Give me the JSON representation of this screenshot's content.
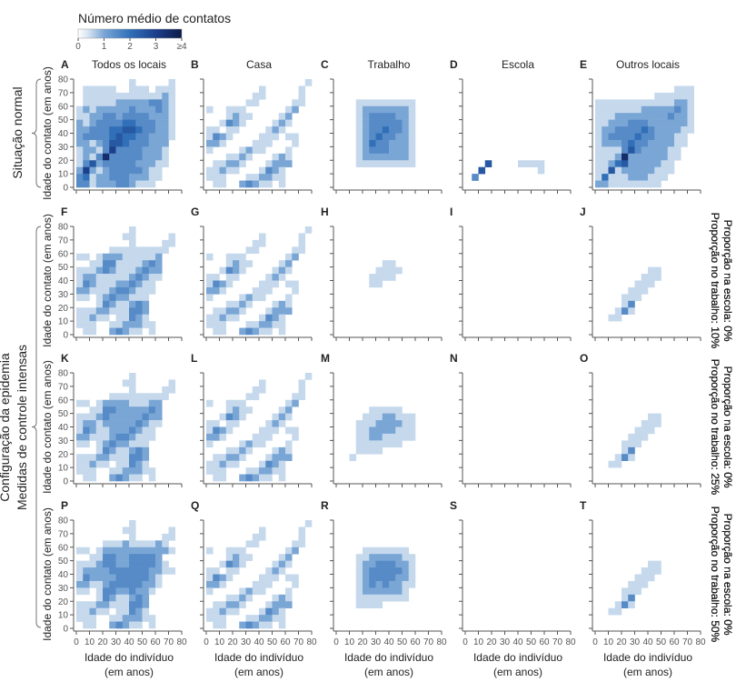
{
  "chart_data": {
    "type": "heatmap",
    "legend": {
      "title": "Número médio de contatos",
      "ticks": [
        "0",
        "1",
        "2",
        "3",
        "≥4"
      ],
      "range": [
        0,
        4
      ]
    },
    "colors": {
      "stops": [
        [
          0,
          "#ffffff"
        ],
        [
          0.4,
          "#d5e3f0"
        ],
        [
          1,
          "#7aa6d6"
        ],
        [
          2,
          "#3170b8"
        ],
        [
          3,
          "#1c3f8c"
        ],
        [
          4,
          "#0e1a47"
        ]
      ],
      "axis": "#555555"
    },
    "value_encoding": "each matrix row is a string of digits, top row = contact age 75-80, bottom row = 0-5; columns = individual age 0-5 ... 75-80; value = digit × 0.5 contacts",
    "axis_ticks": [
      "0",
      "10",
      "20",
      "30",
      "40",
      "50",
      "60",
      "70",
      "80"
    ],
    "xlabel": [
      "Idade do indivíduo",
      "(em anos)"
    ],
    "ylabel": "Idade do contato (em anos)",
    "column_titles": [
      "Todos os locais",
      "Casa",
      "Trabalho",
      "Escola",
      "Outros locais"
    ],
    "row_groups": [
      {
        "label": "Situação normal"
      },
      {
        "label": "Configuração da epidemia",
        "sublabel": "Medidas de controle intensas"
      }
    ],
    "row_annotations": [
      null,
      [
        "Proporção no trabalho: 10%",
        "Proporção na escola: 0%"
      ],
      [
        "Proporção no trabalho: 25%",
        "Proporção na escola: 0%"
      ],
      [
        "Proporção no trabalho: 50%",
        "Proporção na escola: 0%"
      ]
    ],
    "matrices": {
      "allNormal": [
        "0000000010000010",
        "0111110011101110",
        "0111111111111210",
        "0111112222233210",
        "1212222232223210",
        "1122332333322210",
        "2123333443332210",
        "2233344554332210",
        "2333345443322210",
        "2212355433322200",
        "1221363333222100",
        "1213733333222100",
        "1352333332221100",
        "2621233333211000",
        "3412233322211000",
        "3312223321110000"
      ],
      "home": [
        "0000000000000001",
        "0000000010000010",
        "0000000110000010",
        "0000001100000110",
        "1001110000001200",
        "0001211000012000",
        "0013210000121000",
        "1101100001210000",
        "1321000011101100",
        "2210000111000100",
        "1000012110001000",
        "0001121000121000",
        "0112210001222000",
        "1121100013210000",
        "1110001122110000",
        "0110023211010000"
      ],
      "workNormal": [
        "0000000000000000",
        "0000000000000000",
        "0000000000000000",
        "0001111111110000",
        "0001222222210000",
        "0001233332210000",
        "0001233333210000",
        "0001233433210000",
        "0001234332210000",
        "0001243322210000",
        "0001233322210000",
        "0001222222210000",
        "0001111111110000",
        "0000000000000000",
        "0000000000000000",
        "0000000000000000"
      ],
      "school": [
        "0000000000000000",
        "0000000000000000",
        "0000000000000000",
        "0000000000000000",
        "0000000000000000",
        "0000000000000000",
        "0000000000000000",
        "0000000000000000",
        "0000000000000000",
        "0000000000000000",
        "0000000000000000",
        "0000000000000000",
        "0005000011110000",
        "0050000000010000",
        "0300000000000000",
        "0000000000000000"
      ],
      "otherNormal": [
        "0000000000000000",
        "0000000000001110",
        "0000000001111110",
        "1111111111112210",
        "1111111222223210",
        "1112222222232210",
        "1122233322222210",
        "1223333432222110",
        "1233334332221100",
        "1222343322221100",
        "1111353222211000",
        "1112722222211000",
        "1124522222110000",
        "1151222221110000",
        "1411122211100000",
        "2211111111000000"
      ],
      "all10": [
        "0000000010000000",
        "0000000110000010",
        "0000000010000110",
        "0000011111111100",
        "1101222111112000",
        "0011331111232000",
        "1112321112322000",
        "1221111123211000",
        "1321112232110000",
        "2211123321110000",
        "1101232211100000",
        "0001321123200000",
        "1112211133200000",
        "1121101132100000",
        "1110011222110000",
        "0110023211010000"
      ],
      "all25": [
        "0000000010000000",
        "0000000110000010",
        "0000000010000110",
        "0000011111111100",
        "1101222211122000",
        "0011332222232000",
        "1112322222322000",
        "1221222223211000",
        "1321122232110000",
        "2211123321110000",
        "1101232211100000",
        "0001321123200000",
        "1112211133200000",
        "1121101132100000",
        "1110011222110000",
        "0110023211010000"
      ],
      "all50": [
        "0000000010000000",
        "0000000110000010",
        "0000000010000110",
        "0000111211112100",
        "1101222222222210",
        "0011332233332000",
        "1112332233332100",
        "1222233333322110",
        "1322223333321000",
        "2211233333221000",
        "1101332232210000",
        "0001321123200000",
        "1112211133200000",
        "1121101132100000",
        "1110011222110000",
        "0110023211010000"
      ],
      "work10": [
        "0000000000000000",
        "0000000000000000",
        "0000000000000000",
        "0000000000000000",
        "0000000000000000",
        "0000000110000000",
        "0000001111000000",
        "0000011110000000",
        "0000011000000000",
        "0000000000000000",
        "0000000000000000",
        "0000000000000000",
        "0000000000000000",
        "0000000000000000",
        "0000000000000000",
        "0000000000000000"
      ],
      "work25": [
        "0000000000000000",
        "0000000000000000",
        "0000000000000000",
        "0000000000000000",
        "0000000000000000",
        "0000011111000000",
        "0000111221110000",
        "0001112222110000",
        "0001122221110000",
        "0001122111110000",
        "0001111111000000",
        "0001111000000000",
        "0010000000000000",
        "0000000000000000",
        "0000000000000000",
        "0000000000000000"
      ],
      "work50": [
        "0000000000000000",
        "0000000000000000",
        "0000000000000000",
        "0000000000000000",
        "0000111111100000",
        "0001122222110000",
        "0001223332210000",
        "0001233333210000",
        "0001233332210000",
        "0001232322110000",
        "0001222222100000",
        "0001111111100000",
        "0001111000000000",
        "0000000000000000",
        "0000000000000000",
        "0000000000000000"
      ],
      "empty": [
        "0000000000000000",
        "0000000000000000",
        "0000000000000000",
        "0000000000000000",
        "0000000000000000",
        "0000000000000000",
        "0000000000000000",
        "0000000000000000",
        "0000000000000000",
        "0000000000000000",
        "0000000000000000",
        "0000000000000000",
        "0000000000000000",
        "0000000000000000",
        "0000000000000000",
        "0000000000000000"
      ],
      "otherReduced": [
        "0000000000000000",
        "0000000000000000",
        "0000000000000000",
        "0000000000000000",
        "0000000000000000",
        "0000000000000000",
        "0000000011000000",
        "0000000111000000",
        "0000001110000000",
        "0000011100000000",
        "0000111000000000",
        "0000130000000000",
        "0001310000000000",
        "0011000000000000",
        "0000000000000000",
        "0000000000000000"
      ]
    },
    "panels": [
      {
        "letter": "A",
        "matrix": "allNormal"
      },
      {
        "letter": "B",
        "matrix": "home"
      },
      {
        "letter": "C",
        "matrix": "workNormal"
      },
      {
        "letter": "D",
        "matrix": "school"
      },
      {
        "letter": "E",
        "matrix": "otherNormal"
      },
      {
        "letter": "F",
        "matrix": "all10"
      },
      {
        "letter": "G",
        "matrix": "home"
      },
      {
        "letter": "H",
        "matrix": "work10"
      },
      {
        "letter": "I",
        "matrix": "empty"
      },
      {
        "letter": "J",
        "matrix": "otherReduced"
      },
      {
        "letter": "K",
        "matrix": "all25"
      },
      {
        "letter": "L",
        "matrix": "home"
      },
      {
        "letter": "M",
        "matrix": "work25"
      },
      {
        "letter": "N",
        "matrix": "empty"
      },
      {
        "letter": "O",
        "matrix": "otherReduced"
      },
      {
        "letter": "P",
        "matrix": "all50"
      },
      {
        "letter": "Q",
        "matrix": "home"
      },
      {
        "letter": "R",
        "matrix": "work50"
      },
      {
        "letter": "S",
        "matrix": "empty"
      },
      {
        "letter": "T",
        "matrix": "otherReduced"
      }
    ]
  }
}
